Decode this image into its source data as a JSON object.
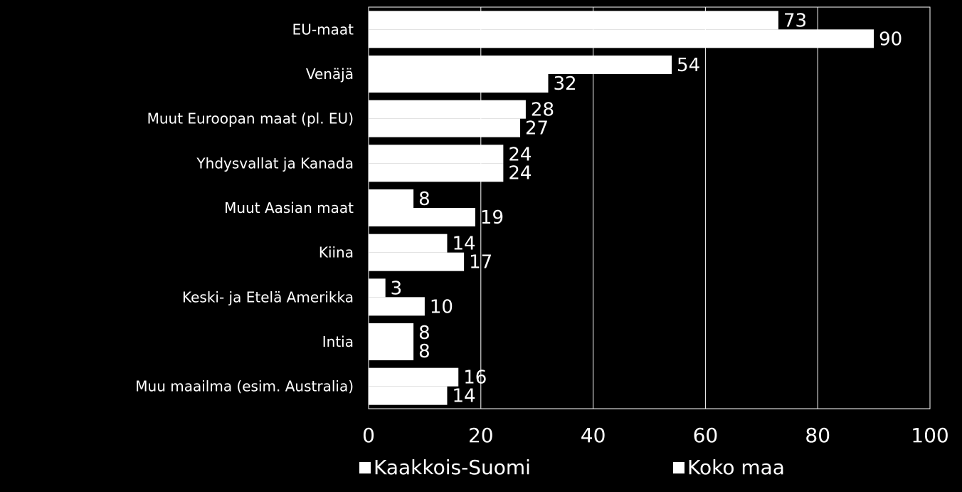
{
  "chart_data": {
    "type": "bar",
    "orientation": "horizontal",
    "categories": [
      "EU-maat",
      "Venäjä",
      "Muut Euroopan maat (pl. EU)",
      "Yhdysvallat ja Kanada",
      "Muut Aasian maat",
      "Kiina",
      "Keski- ja Etelä Amerikka",
      "Intia",
      "Muu maailma (esim. Australia)"
    ],
    "series": [
      {
        "name": "Kaakkois-Suomi",
        "values": [
          73,
          54,
          28,
          24,
          8,
          14,
          3,
          8,
          16
        ],
        "labels": [
          "73",
          "54",
          "28",
          "24",
          "8",
          "14",
          "3",
          "8",
          "16"
        ]
      },
      {
        "name": "Koko maa",
        "values": [
          90,
          32,
          27,
          24,
          19,
          17,
          10,
          8,
          14
        ],
        "labels": [
          "90",
          "32",
          "27",
          "24",
          "19",
          "17",
          "10",
          "8",
          "14"
        ]
      }
    ],
    "xlim": [
      0,
      100
    ],
    "xticks": [
      "0",
      "20",
      "40",
      "60",
      "80",
      "100"
    ],
    "grid": "vertical",
    "legend_position": "bottom",
    "colors": {
      "background": "#000000",
      "bar": "#ffffff",
      "text": "#ffffff",
      "grid": "#ffffff"
    }
  }
}
